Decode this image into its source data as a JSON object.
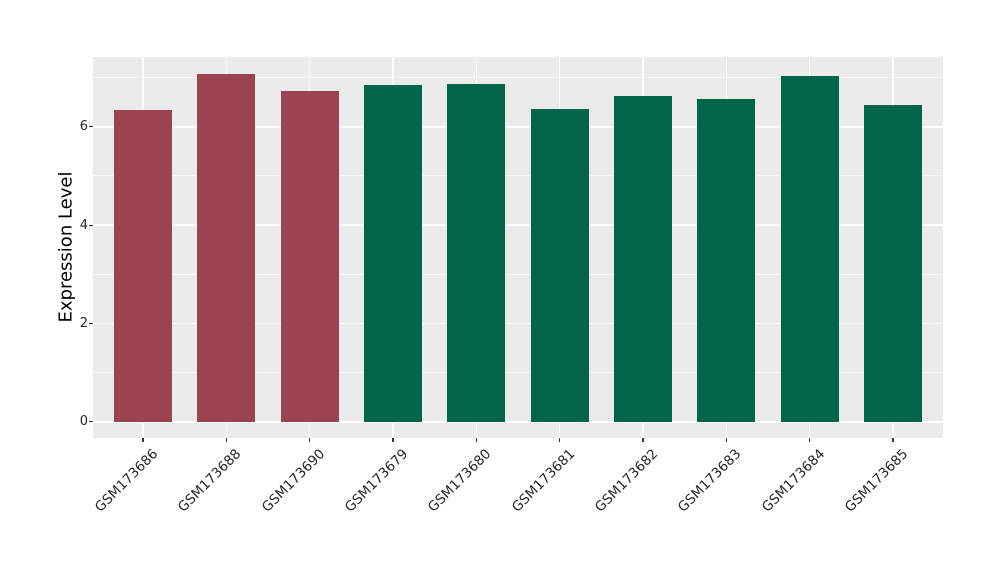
{
  "chart_data": {
    "type": "bar",
    "title": "",
    "xlabel": "",
    "ylabel": "Expression Level",
    "categories": [
      "GSM173686",
      "GSM173688",
      "GSM173690",
      "GSM173679",
      "GSM173680",
      "GSM173681",
      "GSM173682",
      "GSM173683",
      "GSM173684",
      "GSM173685"
    ],
    "values": [
      6.35,
      7.08,
      6.72,
      6.85,
      6.87,
      6.37,
      6.63,
      6.56,
      7.03,
      6.45
    ],
    "bar_colors": [
      "#9C4351",
      "#9C4351",
      "#9C4351",
      "#006647",
      "#006647",
      "#006647",
      "#006647",
      "#006647",
      "#006647",
      "#006647"
    ],
    "ylim": [
      0,
      7.42
    ],
    "yticks": [
      0,
      2,
      4,
      6
    ],
    "minor_yticks": [
      1,
      3,
      5,
      7
    ],
    "grid": "on",
    "legend": "none",
    "panel_background": "#EBEBEB",
    "major_grid_color": "#FFFFFF",
    "minor_grid_color": "rgba(255,255,255,0.65)",
    "tick_mark_color": "#333333",
    "tick_label_color": "#262626"
  }
}
